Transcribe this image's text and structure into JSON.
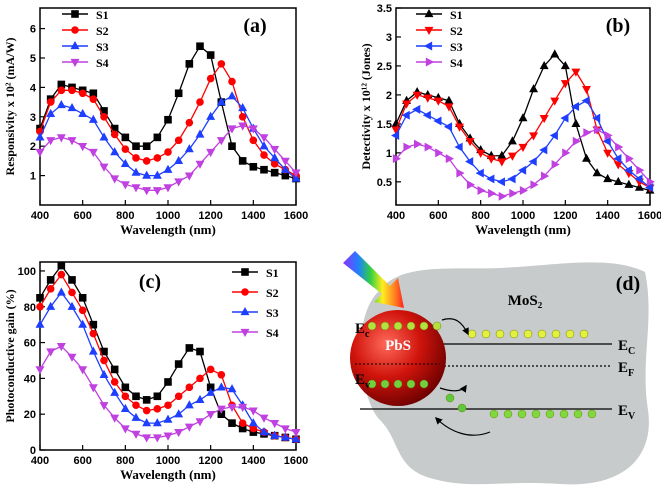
{
  "chart_data": [
    {
      "type": "line",
      "title": "(a)",
      "xlabel": "Wavelength (nm)",
      "ylabel": "Responsivity x 10² (mA/W)",
      "x": [
        400,
        450,
        500,
        550,
        600,
        650,
        700,
        750,
        800,
        850,
        900,
        950,
        1000,
        1050,
        1100,
        1150,
        1200,
        1250,
        1300,
        1350,
        1400,
        1450,
        1500,
        1550,
        1600
      ],
      "xlim": [
        400,
        1600
      ],
      "xticks": [
        400,
        600,
        800,
        1000,
        1200,
        1400,
        1600
      ],
      "ylim": [
        0,
        6.7
      ],
      "yticks": [
        1,
        2,
        3,
        4,
        5,
        6
      ],
      "legend_loc": "upper left",
      "series": [
        {
          "name": "S1",
          "color": "#000000",
          "marker": "square",
          "values": [
            2.6,
            3.6,
            4.1,
            4.0,
            3.9,
            3.8,
            3.2,
            2.6,
            2.3,
            2.0,
            2.0,
            2.3,
            2.9,
            3.8,
            4.8,
            5.4,
            5.1,
            3.5,
            2.0,
            1.5,
            1.3,
            1.2,
            1.1,
            1.0,
            0.9
          ]
        },
        {
          "name": "S2",
          "color": "#ff0000",
          "marker": "circle",
          "values": [
            2.5,
            3.5,
            3.9,
            3.9,
            3.8,
            3.6,
            3.0,
            2.4,
            1.9,
            1.6,
            1.5,
            1.6,
            1.8,
            2.2,
            2.8,
            3.5,
            4.3,
            4.8,
            4.2,
            3.0,
            2.2,
            1.7,
            1.4,
            1.2,
            1.0
          ]
        },
        {
          "name": "S3",
          "color": "#1f3fff",
          "marker": "triangle-up",
          "values": [
            2.3,
            3.1,
            3.4,
            3.3,
            3.1,
            2.9,
            2.3,
            1.8,
            1.4,
            1.1,
            1.0,
            1.0,
            1.2,
            1.5,
            1.9,
            2.4,
            3.0,
            3.5,
            3.7,
            3.3,
            2.6,
            2.0,
            1.6,
            1.2,
            0.9
          ]
        },
        {
          "name": "S4",
          "color": "#c040e0",
          "marker": "triangle-down",
          "values": [
            1.8,
            2.2,
            2.3,
            2.2,
            2.0,
            1.8,
            1.3,
            0.9,
            0.7,
            0.6,
            0.5,
            0.5,
            0.6,
            0.8,
            1.0,
            1.4,
            1.8,
            2.2,
            2.6,
            2.7,
            2.6,
            2.3,
            1.9,
            1.5,
            1.1
          ]
        }
      ]
    },
    {
      "type": "line",
      "title": "(b)",
      "xlabel": "Wavelength (nm)",
      "ylabel": "Detectivity x 10¹² (Jones)",
      "x": [
        400,
        450,
        500,
        550,
        600,
        650,
        700,
        750,
        800,
        850,
        900,
        950,
        1000,
        1050,
        1100,
        1150,
        1200,
        1250,
        1300,
        1350,
        1400,
        1450,
        1500,
        1550,
        1600
      ],
      "xlim": [
        400,
        1600
      ],
      "xticks": [
        400,
        600,
        800,
        1000,
        1200,
        1400,
        1600
      ],
      "ylim": [
        0.1,
        3.5
      ],
      "yticks": [
        0.5,
        1.0,
        1.5,
        2.0,
        2.5,
        3.0,
        3.5
      ],
      "legend_loc": "upper left",
      "series": [
        {
          "name": "S1",
          "color": "#000000",
          "marker": "triangle-up",
          "values": [
            1.5,
            1.9,
            2.05,
            2.0,
            1.95,
            1.9,
            1.5,
            1.25,
            1.05,
            0.95,
            0.95,
            1.2,
            1.6,
            2.1,
            2.5,
            2.7,
            2.5,
            1.5,
            0.9,
            0.65,
            0.55,
            0.5,
            0.45,
            0.4,
            0.35
          ]
        },
        {
          "name": "S2",
          "color": "#ff0000",
          "marker": "triangle-down",
          "values": [
            1.4,
            1.85,
            2.0,
            1.95,
            1.9,
            1.8,
            1.45,
            1.2,
            1.0,
            0.9,
            0.85,
            0.95,
            1.1,
            1.3,
            1.6,
            1.9,
            2.2,
            2.4,
            2.1,
            1.4,
            1.0,
            0.8,
            0.65,
            0.5,
            0.4
          ]
        },
        {
          "name": "S3",
          "color": "#1f3fff",
          "marker": "triangle-left",
          "values": [
            1.3,
            1.65,
            1.75,
            1.65,
            1.55,
            1.45,
            1.1,
            0.85,
            0.65,
            0.55,
            0.5,
            0.55,
            0.7,
            0.85,
            1.05,
            1.3,
            1.6,
            1.8,
            1.9,
            1.6,
            1.2,
            0.9,
            0.7,
            0.55,
            0.4
          ]
        },
        {
          "name": "S4",
          "color": "#c040e0",
          "marker": "triangle-right",
          "values": [
            0.9,
            1.1,
            1.15,
            1.1,
            1.0,
            0.9,
            0.65,
            0.45,
            0.35,
            0.3,
            0.25,
            0.3,
            0.35,
            0.45,
            0.6,
            0.8,
            1.0,
            1.2,
            1.35,
            1.4,
            1.3,
            1.1,
            0.9,
            0.7,
            0.5
          ]
        }
      ]
    },
    {
      "type": "line",
      "title": "(c)",
      "xlabel": "Wavelength (nm)",
      "ylabel": "Photoconductive gain (%)",
      "x": [
        400,
        450,
        500,
        550,
        600,
        650,
        700,
        750,
        800,
        850,
        900,
        950,
        1000,
        1050,
        1100,
        1150,
        1200,
        1250,
        1300,
        1350,
        1400,
        1450,
        1500,
        1550,
        1600
      ],
      "xlim": [
        400,
        1600
      ],
      "xticks": [
        400,
        600,
        800,
        1000,
        1200,
        1400,
        1600
      ],
      "ylim": [
        0,
        105
      ],
      "yticks": [
        0,
        20,
        40,
        60,
        80,
        100
      ],
      "legend_loc": "upper right",
      "series": [
        {
          "name": "S1",
          "color": "#000000",
          "marker": "square",
          "values": [
            85,
            95,
            103,
            95,
            85,
            70,
            55,
            45,
            35,
            30,
            28,
            30,
            38,
            48,
            57,
            55,
            35,
            20,
            15,
            12,
            10,
            9,
            8,
            7,
            6
          ]
        },
        {
          "name": "S2",
          "color": "#ff0000",
          "marker": "circle",
          "values": [
            80,
            90,
            98,
            88,
            78,
            65,
            50,
            38,
            30,
            25,
            22,
            23,
            25,
            30,
            35,
            40,
            45,
            42,
            25,
            15,
            12,
            10,
            8,
            7,
            6
          ]
        },
        {
          "name": "S3",
          "color": "#1f3fff",
          "marker": "triangle-up",
          "values": [
            70,
            80,
            88,
            80,
            70,
            55,
            42,
            32,
            23,
            18,
            15,
            15,
            17,
            20,
            25,
            28,
            32,
            35,
            34,
            25,
            15,
            10,
            8,
            7,
            6
          ]
        },
        {
          "name": "S4",
          "color": "#c040e0",
          "marker": "triangle-down",
          "values": [
            45,
            55,
            58,
            52,
            45,
            35,
            25,
            18,
            12,
            9,
            7,
            7,
            8,
            10,
            13,
            16,
            20,
            23,
            24,
            24,
            22,
            18,
            15,
            12,
            10
          ]
        }
      ]
    }
  ],
  "diagram": {
    "label": "(d)",
    "material": "MoS₂",
    "particle": "PbS",
    "levels": [
      {
        "main": "E",
        "sub": "C"
      },
      {
        "main": "E",
        "sub": "F"
      },
      {
        "main": "E",
        "sub": "V"
      }
    ],
    "particle_levels": [
      {
        "main": "E",
        "sub": "c"
      },
      {
        "main": "E",
        "sub": "v"
      }
    ]
  }
}
